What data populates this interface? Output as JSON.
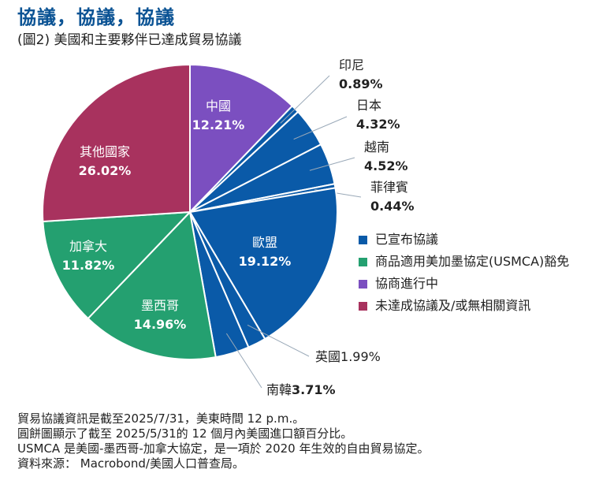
{
  "title": "協議，協議，協議",
  "subtitle": "(圖2) 美國和主要夥伴已達成貿易協議",
  "colors": {
    "announced": "#0a5aa8",
    "usmca": "#24a070",
    "negotiating": "#7b4fc0",
    "none": "#a8325e"
  },
  "chart_data": {
    "type": "pie",
    "slices": [
      {
        "label": "中國",
        "value": 12.21,
        "display": "12.21%",
        "category": "negotiating"
      },
      {
        "label": "印尼",
        "value": 0.89,
        "display": "0.89%",
        "category": "announced"
      },
      {
        "label": "日本",
        "value": 4.32,
        "display": "4.32%",
        "category": "announced"
      },
      {
        "label": "越南",
        "value": 4.52,
        "display": "4.52%",
        "category": "announced"
      },
      {
        "label": "菲律賓",
        "value": 0.44,
        "display": "0.44%",
        "category": "announced"
      },
      {
        "label": "歐盟",
        "value": 19.12,
        "display": "19.12%",
        "category": "announced"
      },
      {
        "label": "英國",
        "value": 1.99,
        "display": "1.99%",
        "category": "announced"
      },
      {
        "label": "南韓",
        "value": 3.71,
        "display": "3.71%",
        "category": "announced"
      },
      {
        "label": "墨西哥",
        "value": 14.96,
        "display": "14.96%",
        "category": "usmca"
      },
      {
        "label": "加拿大",
        "value": 11.82,
        "display": "11.82%",
        "category": "usmca"
      },
      {
        "label": "其他國家",
        "value": 26.02,
        "display": "26.02%",
        "category": "none"
      }
    ],
    "legend": [
      {
        "label": "已宣布協議",
        "category": "announced"
      },
      {
        "label": "商品適用美加墨協定(USMCA)豁免",
        "category": "usmca"
      },
      {
        "label": "協商進行中",
        "category": "negotiating"
      },
      {
        "label": "未達成協議及/或無相關資訊",
        "category": "none"
      }
    ]
  },
  "notes": [
    "貿易協議資訊是截至2025/7/31，美東時間 12 p.m.。",
    "圓餅圖顯示了截至 2025/5/31的 12 個月內美國進口額百分比。",
    "USMCA 是美國-墨西哥-加拿大協定，是一項於 2020 年生效的自由貿易協定。",
    "資料來源： Macrobond/美國人口普查局。"
  ]
}
